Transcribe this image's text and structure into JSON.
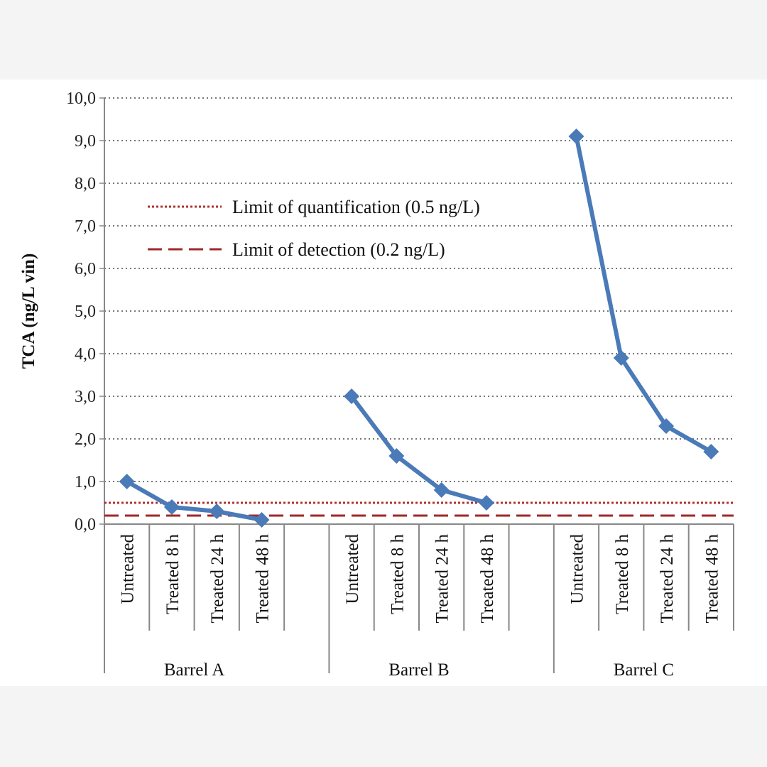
{
  "chart_data": {
    "type": "line",
    "title": "",
    "ylabel": "TCA (ng/L vin)",
    "ylim": [
      0,
      10
    ],
    "ytick_step": 1,
    "ytick_labels": [
      "0,0",
      "1,0",
      "2,0",
      "3,0",
      "4,0",
      "5,0",
      "6,0",
      "7,0",
      "8,0",
      "9,0",
      "10,0"
    ],
    "grid": true,
    "legend_position": "upper-left",
    "categories": [
      "Untreated",
      "Treated 8 h",
      "Treated 24 h",
      "Treated 48 h"
    ],
    "groups": [
      {
        "name": "Barrel A",
        "values": [
          1.0,
          0.4,
          0.3,
          0.1
        ]
      },
      {
        "name": "Barrel B",
        "values": [
          3.0,
          1.6,
          0.8,
          0.5
        ]
      },
      {
        "name": "Barrel C",
        "values": [
          9.1,
          3.9,
          2.3,
          1.7
        ]
      }
    ],
    "series_color": "#4a7ab7",
    "reference_lines": [
      {
        "label": "Limit of quantification (0.5 ng/L)",
        "value": 0.5,
        "style": "dotted",
        "color": "#b03030"
      },
      {
        "label": "Limit of detection (0.2 ng/L)",
        "value": 0.2,
        "style": "dashed",
        "color": "#a02828"
      }
    ]
  }
}
